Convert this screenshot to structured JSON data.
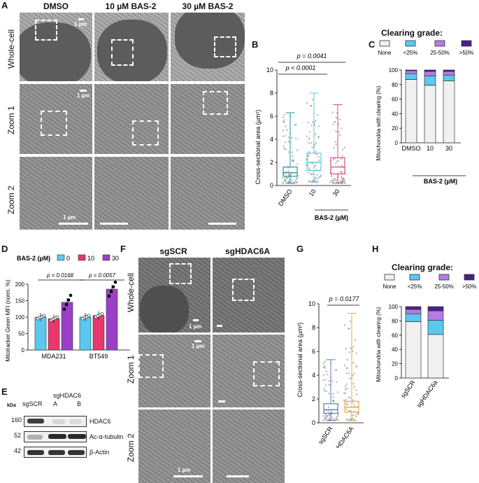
{
  "panels": {
    "A": "A",
    "B": "B",
    "C": "C",
    "D": "D",
    "E": "E",
    "F": "F",
    "G": "G",
    "H": "H"
  },
  "panelA": {
    "columns": [
      "DMSO",
      "10 µM BAS-2",
      "30 µM BAS-2"
    ],
    "rows": [
      "Whole-cell",
      "Zoom 1",
      "Zoom 2"
    ],
    "scalebar_labels": [
      "1 µm",
      "1 µm",
      "1 µm"
    ]
  },
  "panelB": {
    "ylabel": "Cross-sectional area (µm²)",
    "xlabel": "BAS-2 (µM)",
    "p1": "p < 0.0001",
    "p2": "p = 0.0041"
  },
  "panelC": {
    "grade_title": "Clearing grade:",
    "legend": [
      "None",
      "<25%",
      "25-50%",
      ">50%"
    ],
    "ylabel": "Mitochondria with clearing (%)",
    "xlabel": "BAS-2 (µM)"
  },
  "panelD": {
    "legend_title": "BAS-2 (µM)",
    "legend": [
      "0",
      "10",
      "30"
    ],
    "ylabel": "Mitotracker Green MFI (norm. %)",
    "p1": "p = 0.0168",
    "p2": "p = 0.0057"
  },
  "panelE": {
    "kda": "kDa",
    "lane_labels": [
      "sgSCR",
      "sgHDAC6",
      "A",
      "B"
    ],
    "markers": [
      "160",
      "52",
      "42"
    ],
    "proteins": [
      "HDAC6",
      "Ac-α-tubulin",
      "β-Actin"
    ]
  },
  "panelF": {
    "columns": [
      "sgSCR",
      "sgHDAC6A"
    ],
    "rows": [
      "Whole-cell",
      "Zoom 1",
      "Zoom 2"
    ],
    "scalebar_labels": [
      "1 µm",
      "1 µm",
      "1 µm"
    ]
  },
  "panelG": {
    "ylabel": "Cross-sectional area (µm²)",
    "p": "p = 0.0177"
  },
  "panelH": {
    "grade_title": "Clearing grade:",
    "legend": [
      "None",
      "<25%",
      "25-50%",
      ">50%"
    ],
    "ylabel": "Mitochondria with clearing (%)"
  },
  "colors": {
    "none": "#f0f0f0",
    "lt25": "#5bc8f0",
    "25to50": "#b57be8",
    "gt50": "#4a1f8c",
    "dmso": "#1f9a9a",
    "b10": "#62c4e8",
    "b30": "#e24a80",
    "d0": "#5bc8f0",
    "d10": "#e8386d",
    "d30": "#9a40c8",
    "sgscr": "#5c7fb6",
    "sghdac6a": "#f0a830"
  },
  "chart_data": [
    {
      "panel": "B",
      "type": "box",
      "categories": [
        "DMSO",
        "10",
        "30"
      ],
      "series": [
        {
          "min": 0.2,
          "q1": 0.8,
          "median": 1.1,
          "q3": 1.6,
          "max": 6.3
        },
        {
          "min": 0.3,
          "q1": 1.3,
          "median": 2.0,
          "q3": 2.8,
          "max": 8.0
        },
        {
          "min": 0.2,
          "q1": 1.0,
          "median": 1.6,
          "q3": 2.4,
          "max": 7.0
        }
      ],
      "ylim": [
        0,
        10
      ],
      "yticks": [
        0,
        2,
        4,
        6,
        8,
        10
      ],
      "ylabel": "Cross-sectional area (µm²)",
      "xlabel": "BAS-2 (µM)"
    },
    {
      "panel": "C",
      "type": "bar",
      "categories": [
        "DMSO",
        "10",
        "30"
      ],
      "series": [
        {
          "name": "None",
          "values": [
            87,
            79,
            85
          ]
        },
        {
          "name": "<25%",
          "values": [
            8,
            13,
            8
          ]
        },
        {
          "name": "25-50%",
          "values": [
            4,
            6,
            5
          ]
        },
        {
          "name": ">50%",
          "values": [
            1,
            2,
            2
          ]
        }
      ],
      "ylim": [
        0,
        100
      ],
      "yticks": [
        0,
        20,
        40,
        60,
        80,
        100
      ],
      "ylabel": "Mitochondria with clearing (%)",
      "xlabel": "BAS-2 (µM)"
    },
    {
      "panel": "D",
      "type": "bar",
      "categories": [
        "MDA231",
        "BT549"
      ],
      "series": [
        {
          "name": "0",
          "values": [
            100,
            100
          ]
        },
        {
          "name": "10",
          "values": [
            95,
            105
          ]
        },
        {
          "name": "30",
          "values": [
            145,
            185
          ]
        }
      ],
      "ylim": [
        0,
        200
      ],
      "yticks": [
        0,
        50,
        100,
        150,
        200
      ],
      "ylabel": "Mitotracker Green MFI (norm. %)"
    },
    {
      "panel": "G",
      "type": "box",
      "categories": [
        "sgSCR",
        "sgHDAC6A"
      ],
      "series": [
        {
          "min": 0.2,
          "q1": 0.8,
          "median": 1.1,
          "q3": 1.6,
          "max": 5.3
        },
        {
          "min": 0.2,
          "q1": 0.9,
          "median": 1.3,
          "q3": 1.8,
          "max": 9.2
        }
      ],
      "ylim": [
        0,
        10
      ],
      "yticks": [
        0,
        2,
        4,
        6,
        8,
        10
      ],
      "ylabel": "Cross-sectional area (µm²)"
    },
    {
      "panel": "H",
      "type": "bar",
      "categories": [
        "sgSCR",
        "sgHDAC6a"
      ],
      "series": [
        {
          "name": "None",
          "values": [
            79,
            61
          ]
        },
        {
          "name": "<25%",
          "values": [
            11,
            20
          ]
        },
        {
          "name": "25-50%",
          "values": [
            6,
            13
          ]
        },
        {
          "name": ">50%",
          "values": [
            4,
            6
          ]
        }
      ],
      "ylim": [
        0,
        100
      ],
      "yticks": [
        0,
        20,
        40,
        60,
        80,
        100
      ],
      "ylabel": "Mitochondria with clearing (%)"
    }
  ]
}
